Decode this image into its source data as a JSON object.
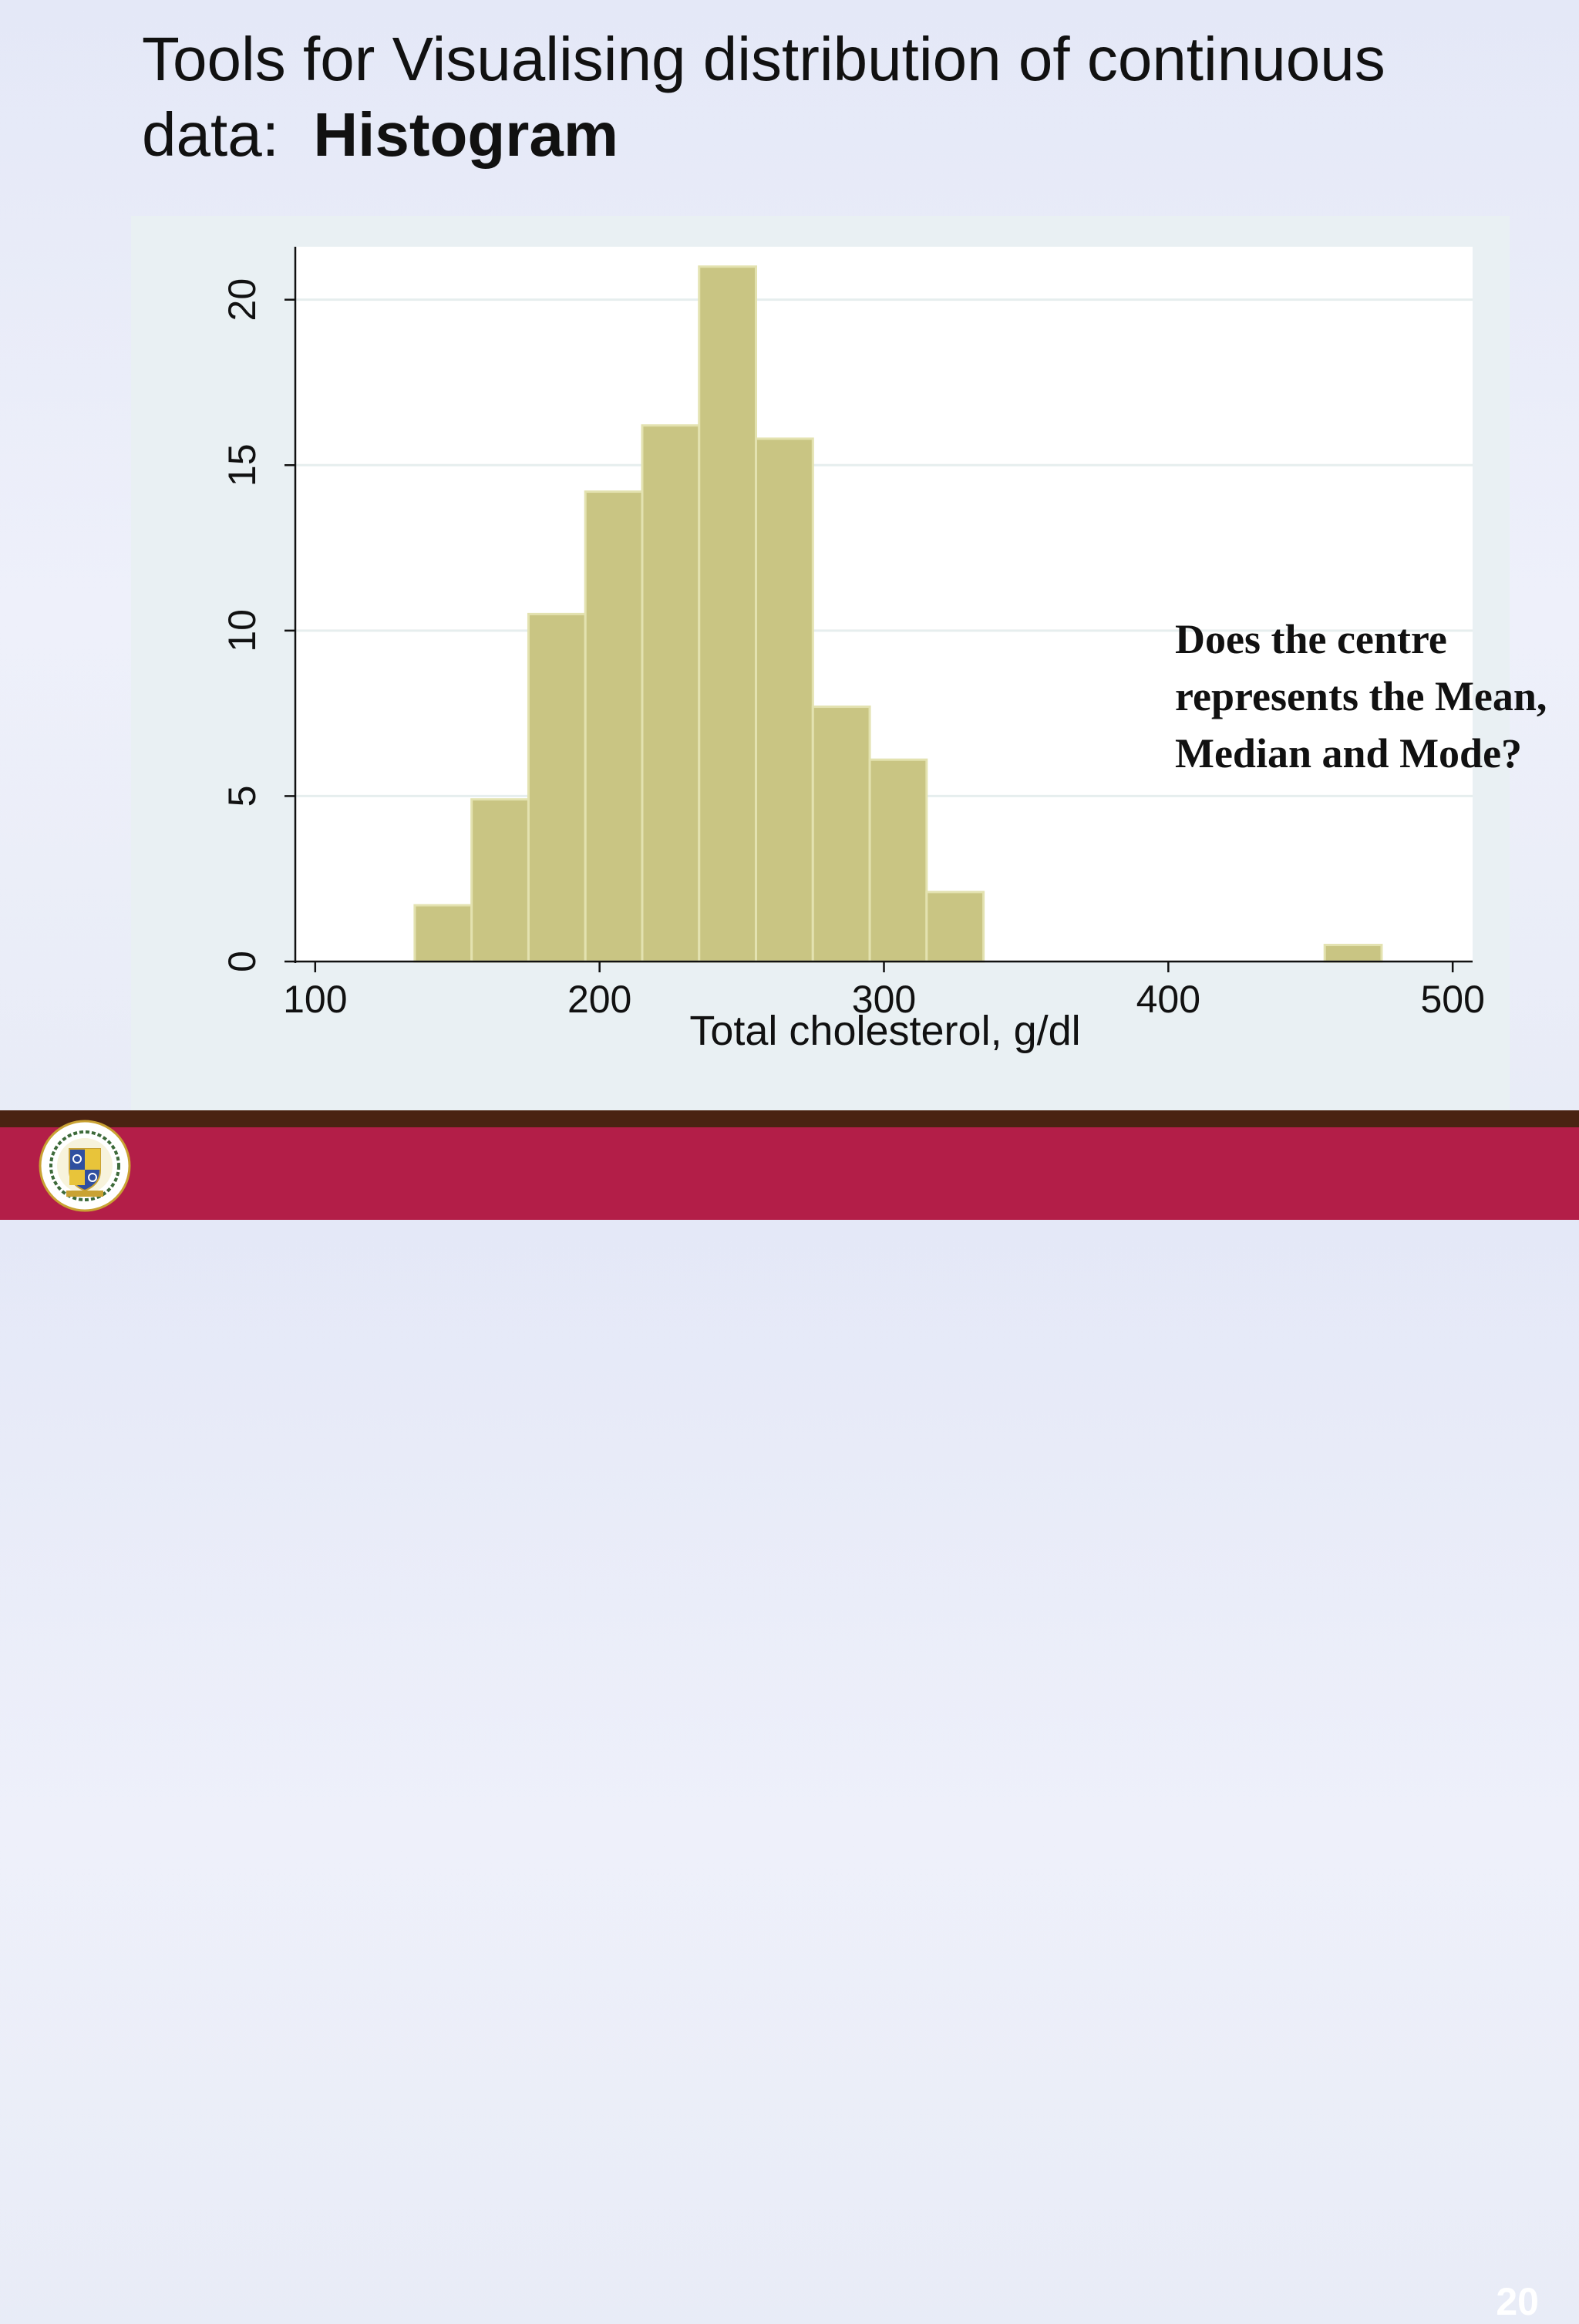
{
  "slide": {
    "title_line1": "Tools for Visualising distribution of continuous",
    "title_line2_prefix": "data:  ",
    "title_line2_bold": "Histogram",
    "annotation": "Does the centre\nrepresents the Mean,\nMedian and Mode?",
    "page_number": "20",
    "logo_icon": "university-seal-icon"
  },
  "colors": {
    "bar_fill": "#c9c583",
    "bar_edge": "#e3e2b0",
    "footer_band": "#b31e48",
    "footer_stripe": "#4a2312"
  },
  "chart_data": {
    "type": "bar",
    "xlabel": "Total cholesterol, g/dl",
    "ylabel": "",
    "xlim": [
      93,
      507
    ],
    "ylim": [
      0,
      21.6
    ],
    "x_ticks": [
      100,
      200,
      300,
      400,
      500
    ],
    "y_ticks": [
      0,
      5,
      10,
      15,
      20
    ],
    "grid": true,
    "bins": [
      {
        "x0": 135,
        "x1": 155,
        "value": 1.7
      },
      {
        "x0": 155,
        "x1": 175,
        "value": 4.9
      },
      {
        "x0": 175,
        "x1": 195,
        "value": 10.5
      },
      {
        "x0": 195,
        "x1": 215,
        "value": 14.2
      },
      {
        "x0": 215,
        "x1": 235,
        "value": 16.2
      },
      {
        "x0": 235,
        "x1": 255,
        "value": 21
      },
      {
        "x0": 255,
        "x1": 275,
        "value": 15.8
      },
      {
        "x0": 275,
        "x1": 295,
        "value": 7.7
      },
      {
        "x0": 295,
        "x1": 315,
        "value": 6.1
      },
      {
        "x0": 315,
        "x1": 335,
        "value": 2.1
      },
      {
        "x0": 455,
        "x1": 475,
        "value": 0.5
      }
    ]
  }
}
